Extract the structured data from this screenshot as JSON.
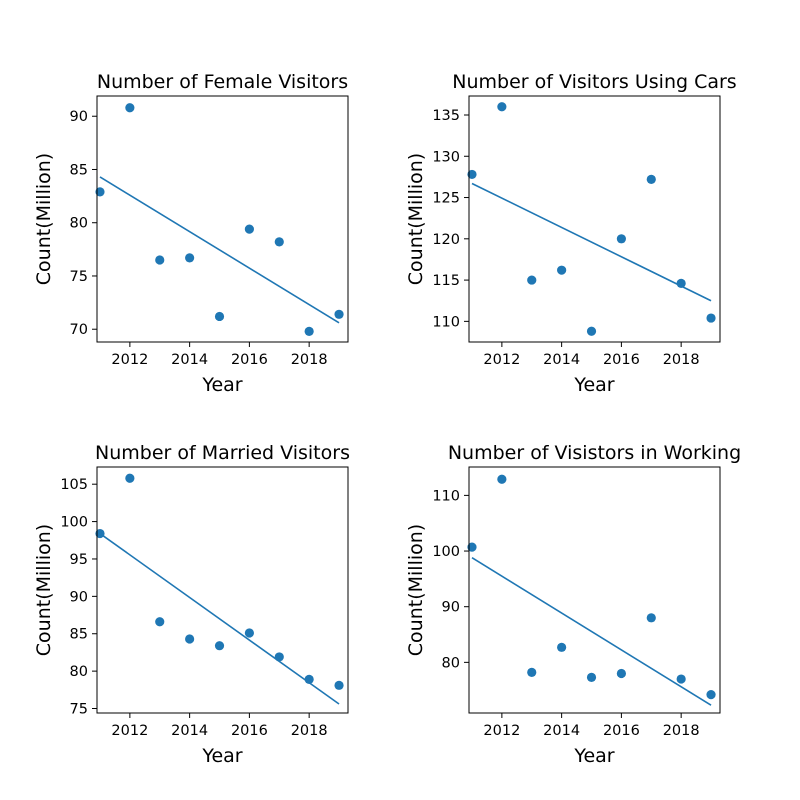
{
  "chart_data": [
    {
      "type": "scatter",
      "title": "Number of Female Visitors",
      "xlabel": "Year",
      "ylabel": "Count(Million)",
      "x": [
        2011,
        2012,
        2013,
        2014,
        2015,
        2016,
        2017,
        2018,
        2019
      ],
      "y": [
        82.9,
        90.8,
        76.5,
        76.7,
        71.2,
        79.4,
        78.2,
        69.8,
        71.4
      ],
      "trend_line": {
        "x": [
          2011,
          2019
        ],
        "y": [
          84.3,
          70.6
        ]
      },
      "xlim": [
        2010.9,
        2019.3
      ],
      "ylim": [
        68.8,
        91.9
      ],
      "xticks": [
        "2012",
        "2014",
        "2016",
        "2018"
      ],
      "yticks": [
        "70",
        "75",
        "80",
        "85",
        "90"
      ],
      "color": "#1f77b4"
    },
    {
      "type": "scatter",
      "title": "Number of Visitors Using Cars",
      "xlabel": "Year",
      "ylabel": "Count(Million)",
      "x": [
        2011,
        2012,
        2013,
        2014,
        2015,
        2016,
        2017,
        2018,
        2019
      ],
      "y": [
        127.8,
        136.0,
        115.0,
        116.2,
        108.8,
        120.0,
        127.2,
        114.6,
        110.4
      ],
      "trend_line": {
        "x": [
          2011,
          2019
        ],
        "y": [
          126.7,
          112.5
        ]
      },
      "xlim": [
        2010.9,
        2019.3
      ],
      "ylim": [
        107.5,
        137.3
      ],
      "xticks": [
        "2012",
        "2014",
        "2016",
        "2018"
      ],
      "yticks": [
        "110",
        "115",
        "120",
        "125",
        "130",
        "135"
      ],
      "color": "#1f77b4"
    },
    {
      "type": "scatter",
      "title": "Number of Married Visitors",
      "xlabel": "Year",
      "ylabel": "Count(Million)",
      "x": [
        2011,
        2012,
        2013,
        2014,
        2015,
        2016,
        2017,
        2018,
        2019
      ],
      "y": [
        98.4,
        105.8,
        86.6,
        84.3,
        83.4,
        85.1,
        81.9,
        78.9,
        78.1
      ],
      "trend_line": {
        "x": [
          2011,
          2019
        ],
        "y": [
          98.4,
          75.6
        ]
      },
      "xlim": [
        2010.9,
        2019.3
      ],
      "ylim": [
        74.4,
        107.3
      ],
      "xticks": [
        "2012",
        "2014",
        "2016",
        "2018"
      ],
      "yticks": [
        "75",
        "80",
        "85",
        "90",
        "95",
        "100",
        "105"
      ],
      "color": "#1f77b4"
    },
    {
      "type": "scatter",
      "title": "Number of Visistors in Working",
      "xlabel": "Year",
      "ylabel": "Count(Million)",
      "x": [
        2011,
        2012,
        2013,
        2014,
        2015,
        2016,
        2017,
        2018,
        2019
      ],
      "y": [
        100.7,
        112.9,
        78.2,
        82.7,
        77.3,
        78.0,
        88.0,
        77.0,
        74.2
      ],
      "trend_line": {
        "x": [
          2011,
          2019
        ],
        "y": [
          98.8,
          72.3
        ]
      },
      "xlim": [
        2010.9,
        2019.3
      ],
      "ylim": [
        70.9,
        115.1
      ],
      "xticks": [
        "2012",
        "2014",
        "2016",
        "2018"
      ],
      "yticks": [
        "80",
        "90",
        "100",
        "110"
      ],
      "color": "#1f77b4"
    }
  ]
}
